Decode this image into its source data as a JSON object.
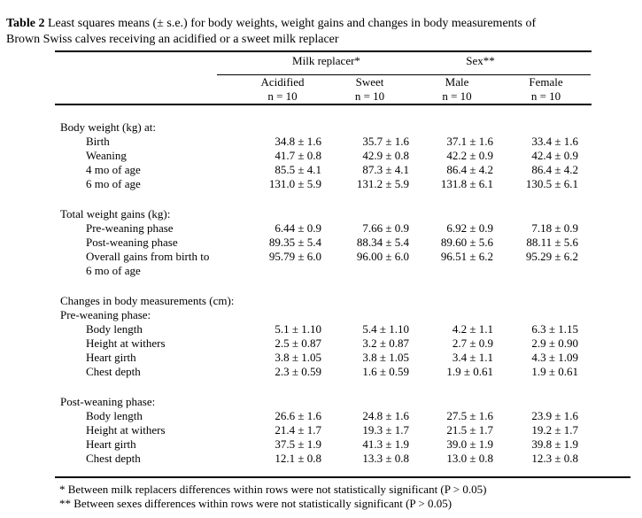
{
  "colors": {
    "text": "#000000",
    "background": "#ffffff",
    "rule": "#000000"
  },
  "title": {
    "label": "Table 2",
    "line1": " Least squares means (± s.e.) for body weights, weight gains and changes in body measurements of",
    "line2": "Brown Swiss calves receiving an acidified or a sweet milk replacer"
  },
  "table": {
    "col_groups": [
      {
        "label": "Milk replacer*"
      },
      {
        "label": "Sex**"
      }
    ],
    "columns": [
      {
        "label": "Acidified",
        "n": "n = 10"
      },
      {
        "label": "Sweet",
        "n": "n = 10"
      },
      {
        "label": "Male",
        "n": "n = 10"
      },
      {
        "label": "Female",
        "n": "n = 10"
      }
    ],
    "sections": [
      {
        "header": "Body weight (kg) at:",
        "rows": [
          {
            "label": "Birth",
            "values": [
              "34.8 ± 1.6",
              "35.7 ± 1.6",
              "37.1 ± 1.6",
              "33.4 ± 1.6"
            ]
          },
          {
            "label": "Weaning",
            "values": [
              "41.7 ± 0.8",
              "42.9 ± 0.8",
              "42.2 ± 0.9",
              "42.4 ± 0.9"
            ]
          },
          {
            "label": "4 mo of age",
            "values": [
              "85.5 ± 4.1",
              "87.3 ± 4.1",
              "86.4 ± 4.2",
              "86.4 ± 4.2"
            ]
          },
          {
            "label": "6 mo of age",
            "values": [
              "131.0 ± 5.9",
              "131.2 ± 5.9",
              "131.8 ± 6.1",
              "130.5 ± 6.1"
            ]
          }
        ]
      },
      {
        "header": "Total weight gains (kg):",
        "rows": [
          {
            "label": "Pre-weaning phase",
            "values": [
              "6.44 ± 0.9",
              "7.66 ± 0.9",
              "6.92 ± 0.9",
              "7.18 ± 0.9"
            ]
          },
          {
            "label": "Post-weaning phase",
            "values": [
              "89.35 ± 5.4",
              "88.34 ± 5.4",
              "89.60 ± 5.6",
              "88.11 ± 5.6"
            ]
          },
          {
            "label": "Overall gains from birth to",
            "label_cont": "6 mo of age",
            "values": [
              "95.79 ± 6.0",
              "96.00 ± 6.0",
              "96.51 ± 6.2",
              "95.29 ± 6.2"
            ]
          }
        ]
      },
      {
        "header": "Changes in body measurements (cm):",
        "subheader": "Pre-weaning phase:",
        "rows": [
          {
            "label": "Body length",
            "values": [
              "5.1 ± 1.10",
              "5.4 ± 1.10",
              "4.2 ± 1.1",
              "6.3 ± 1.15"
            ]
          },
          {
            "label": "Height at withers",
            "values": [
              "2.5 ± 0.87",
              "3.2 ± 0.87",
              "2.7 ± 0.9",
              "2.9 ± 0.90"
            ]
          },
          {
            "label": "Heart girth",
            "values": [
              "3.8 ± 1.05",
              "3.8 ± 1.05",
              "3.4 ± 1.1",
              "4.3 ± 1.09"
            ]
          },
          {
            "label": "Chest depth",
            "values": [
              "2.3 ± 0.59",
              "1.6 ± 0.59",
              "1.9 ± 0.61",
              "1.9 ± 0.61"
            ]
          }
        ]
      },
      {
        "subheader": "Post-weaning phase:",
        "rows": [
          {
            "label": "Body length",
            "values": [
              "26.6 ± 1.6",
              "24.8 ± 1.6",
              "27.5 ± 1.6",
              "23.9 ± 1.6"
            ]
          },
          {
            "label": "Height at withers",
            "values": [
              "21.4 ± 1.7",
              "19.3 ± 1.7",
              "21.5 ± 1.7",
              "19.2 ± 1.7"
            ]
          },
          {
            "label": "Heart girth",
            "values": [
              "37.5 ± 1.9",
              "41.3 ± 1.9",
              "39.0 ± 1.9",
              "39.8 ± 1.9"
            ]
          },
          {
            "label": "Chest depth",
            "values": [
              "12.1 ± 0.8",
              "13.3 ± 0.8",
              "13.0 ± 0.8",
              "12.3 ± 0.8"
            ]
          }
        ]
      }
    ],
    "footnotes": [
      "* Between milk replacers differences within rows were not statistically significant (P > 0.05)",
      "** Between sexes differences within rows were not statistically significant (P > 0.05)"
    ]
  }
}
